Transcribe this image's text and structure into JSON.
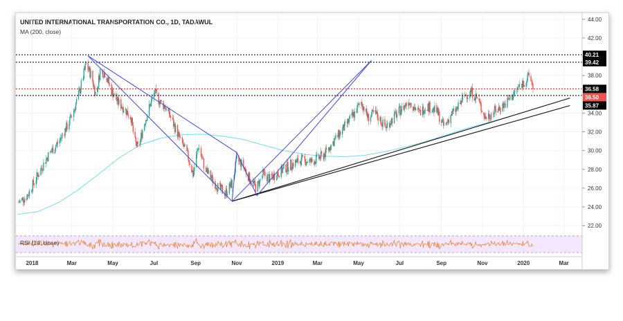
{
  "chart": {
    "title": "UNITED INTERNATIONAL TRANSPORTATION CO., 1D, TADAWUL",
    "indicator": "MA (200, close)",
    "rsi_label": "RSI (14, close)"
  },
  "chart_data": {
    "type": "candlestick",
    "title": "UNITED INTERNATIONAL TRANSPORTATION CO., 1D, TADAWUL",
    "indicator": "MA (200, close)",
    "xlim": [
      "2017-12-10",
      "2020-03-25"
    ],
    "ylim": [
      21.5,
      44.5
    ],
    "y_ticks": [
      22.0,
      24.0,
      26.0,
      28.0,
      30.0,
      32.0,
      34.0,
      36.0,
      38.0,
      40.0,
      42.0,
      44.0
    ],
    "x_ticks": [
      {
        "label": "2018",
        "date": "2018-01-01"
      },
      {
        "label": "Mar",
        "date": "2018-03-01"
      },
      {
        "label": "May",
        "date": "2018-05-01"
      },
      {
        "label": "Jul",
        "date": "2018-07-01"
      },
      {
        "label": "Sep",
        "date": "2018-09-01"
      },
      {
        "label": "Nov",
        "date": "2018-11-01"
      },
      {
        "label": "2019",
        "date": "2019-01-01"
      },
      {
        "label": "Mar",
        "date": "2019-03-01"
      },
      {
        "label": "May",
        "date": "2019-05-01"
      },
      {
        "label": "Jul",
        "date": "2019-07-01"
      },
      {
        "label": "Sep",
        "date": "2019-09-01"
      },
      {
        "label": "Nov",
        "date": "2019-11-01"
      },
      {
        "label": "2020",
        "date": "2020-01-01"
      },
      {
        "label": "Mar",
        "date": "2020-03-01"
      }
    ],
    "price_path": [
      [
        "2017-12-12",
        24.5
      ],
      [
        "2017-12-25",
        25.2
      ],
      [
        "2018-01-10",
        27.5
      ],
      [
        "2018-01-25",
        29.5
      ],
      [
        "2018-02-10",
        31.0
      ],
      [
        "2018-02-25",
        33.0
      ],
      [
        "2018-03-05",
        34.5
      ],
      [
        "2018-03-15",
        37.0
      ],
      [
        "2018-03-22",
        39.2
      ],
      [
        "2018-03-30",
        38.0
      ],
      [
        "2018-04-06",
        35.8
      ],
      [
        "2018-04-12",
        38.5
      ],
      [
        "2018-04-20",
        38.2
      ],
      [
        "2018-04-28",
        36.5
      ],
      [
        "2018-05-08",
        35.2
      ],
      [
        "2018-05-18",
        34.5
      ],
      [
        "2018-05-28",
        33.5
      ],
      [
        "2018-06-02",
        31.0
      ],
      [
        "2018-06-08",
        30.2
      ],
      [
        "2018-06-15",
        32.5
      ],
      [
        "2018-06-25",
        34.8
      ],
      [
        "2018-07-02",
        36.2
      ],
      [
        "2018-07-10",
        35.2
      ],
      [
        "2018-07-20",
        34.5
      ],
      [
        "2018-08-01",
        32.5
      ],
      [
        "2018-08-10",
        31.0
      ],
      [
        "2018-08-20",
        29.5
      ],
      [
        "2018-08-28",
        27.5
      ],
      [
        "2018-09-05",
        30.5
      ],
      [
        "2018-09-15",
        28.0
      ],
      [
        "2018-09-25",
        27.0
      ],
      [
        "2018-10-05",
        26.0
      ],
      [
        "2018-10-15",
        25.5
      ],
      [
        "2018-10-25",
        26.5
      ],
      [
        "2018-11-01",
        29.0
      ],
      [
        "2018-11-10",
        28.5
      ],
      [
        "2018-11-20",
        27.0
      ],
      [
        "2018-11-30",
        26.0
      ],
      [
        "2018-12-10",
        27.5
      ],
      [
        "2018-12-20",
        27.0
      ],
      [
        "2019-01-05",
        27.8
      ],
      [
        "2019-01-20",
        28.5
      ],
      [
        "2019-02-05",
        29.0
      ],
      [
        "2019-02-20",
        28.8
      ],
      [
        "2019-03-10",
        29.5
      ],
      [
        "2019-03-25",
        31.0
      ],
      [
        "2019-04-10",
        32.5
      ],
      [
        "2019-04-25",
        34.0
      ],
      [
        "2019-05-05",
        35.2
      ],
      [
        "2019-05-15",
        33.5
      ],
      [
        "2019-05-25",
        34.0
      ],
      [
        "2019-06-10",
        32.5
      ],
      [
        "2019-06-25",
        33.8
      ],
      [
        "2019-07-05",
        34.5
      ],
      [
        "2019-07-15",
        35.3
      ],
      [
        "2019-07-30",
        34.0
      ],
      [
        "2019-08-10",
        34.8
      ],
      [
        "2019-08-25",
        34.2
      ],
      [
        "2019-09-05",
        32.5
      ],
      [
        "2019-09-15",
        33.8
      ],
      [
        "2019-09-25",
        34.5
      ],
      [
        "2019-10-05",
        35.8
      ],
      [
        "2019-10-15",
        36.3
      ],
      [
        "2019-10-25",
        35.5
      ],
      [
        "2019-11-05",
        33.5
      ],
      [
        "2019-11-15",
        34.0
      ],
      [
        "2019-11-25",
        34.5
      ],
      [
        "2019-12-05",
        35.0
      ],
      [
        "2019-12-15",
        35.8
      ],
      [
        "2019-12-25",
        36.8
      ],
      [
        "2020-01-05",
        37.5
      ],
      [
        "2020-01-10",
        38.0
      ],
      [
        "2020-01-15",
        36.9
      ]
    ],
    "ma200": [
      [
        "2017-12-10",
        23.2
      ],
      [
        "2018-01-10",
        23.5
      ],
      [
        "2018-02-10",
        24.5
      ],
      [
        "2018-03-10",
        25.8
      ],
      [
        "2018-04-10",
        27.5
      ],
      [
        "2018-05-10",
        29.2
      ],
      [
        "2018-06-10",
        30.6
      ],
      [
        "2018-07-10",
        31.3
      ],
      [
        "2018-08-10",
        31.7
      ],
      [
        "2018-09-10",
        31.75
      ],
      [
        "2018-10-10",
        31.55
      ],
      [
        "2018-11-10",
        31.2
      ],
      [
        "2018-12-10",
        30.6
      ],
      [
        "2019-01-10",
        30.0
      ],
      [
        "2019-02-10",
        29.6
      ],
      [
        "2019-03-10",
        29.4
      ],
      [
        "2019-04-10",
        29.35
      ],
      [
        "2019-05-10",
        29.5
      ],
      [
        "2019-06-10",
        29.9
      ],
      [
        "2019-07-10",
        30.4
      ],
      [
        "2019-08-10",
        31.0
      ],
      [
        "2019-09-10",
        31.7
      ],
      [
        "2019-10-10",
        32.4
      ],
      [
        "2019-11-10",
        33.0
      ],
      [
        "2019-12-10",
        33.6
      ],
      [
        "2020-01-15",
        34.4
      ]
    ],
    "horizontal_levels": [
      {
        "value": 40.21,
        "label": "40.21",
        "color": "#000000"
      },
      {
        "value": 39.42,
        "label": "39.42",
        "color": "#000000"
      },
      {
        "value": 36.58,
        "label": "36.58",
        "color": "#000000",
        "line_color": "#c0392b"
      },
      {
        "value": 36.5,
        "label": "36.50",
        "color": "#ef5350"
      },
      {
        "value": 35.87,
        "label": "35.87",
        "color": "#000000"
      }
    ],
    "trendlines": [
      [
        [
          "2018-10-25",
          24.6
        ],
        [
          "2020-03-10",
          35.6
        ]
      ],
      [
        [
          "2018-10-25",
          24.6
        ],
        [
          "2020-03-10",
          34.8
        ]
      ]
    ],
    "pattern": [
      [
        "2018-03-25",
        40.1
      ],
      [
        "2018-10-25",
        24.6
      ],
      [
        "2018-11-01",
        29.8
      ],
      [
        "2018-12-01",
        25.2
      ],
      [
        "2019-05-20",
        39.6
      ]
    ],
    "pattern_extra": [
      [
        [
          "2018-03-25",
          40.1
        ],
        [
          "2018-11-01",
          29.8
        ]
      ],
      [
        [
          "2018-10-25",
          24.6
        ],
        [
          "2019-05-20",
          39.6
        ]
      ]
    ],
    "rsi": {
      "name": "RSI (14, close)",
      "levels": [
        70,
        30
      ]
    }
  },
  "colors": {
    "up": "#26a69a",
    "down": "#ef5350",
    "ma": "#7fd8e8",
    "pattern": "#3f47c9",
    "trend": "#222222",
    "rsi_line": "#e67e22",
    "rsi_band": "#f3e6ff",
    "price_tag": "#ef5350"
  }
}
